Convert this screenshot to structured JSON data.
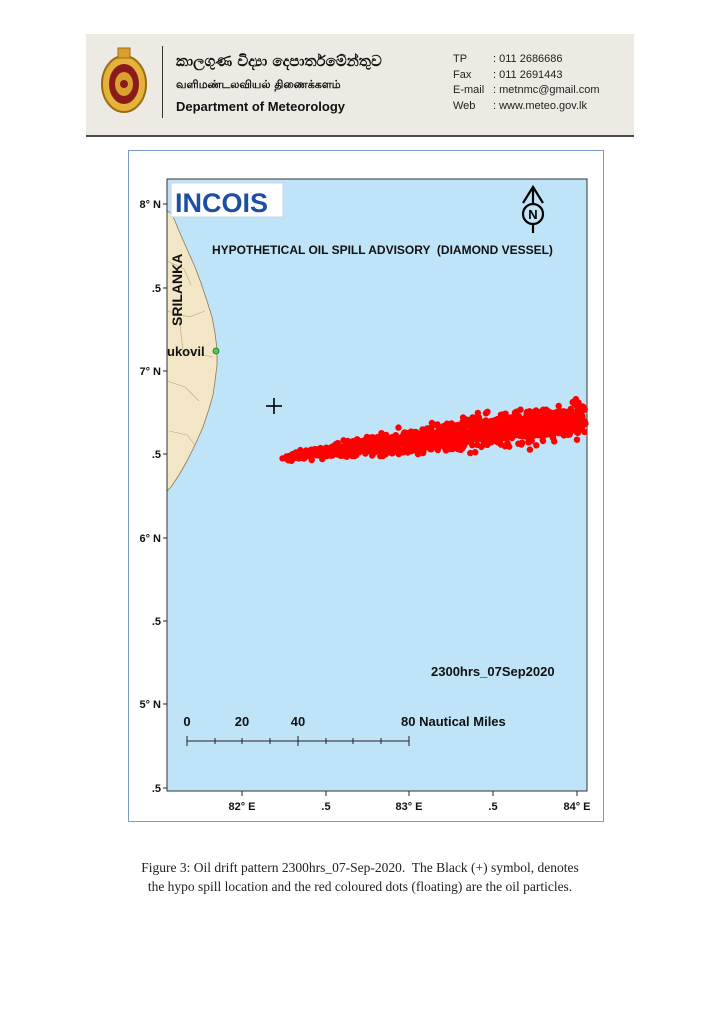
{
  "header": {
    "sinhala_name": "කාලගුණ විද්‍යා දෙපාර්තමේන්තුව",
    "tamil_name": "வளிமண்டலவியல் திணைக்களம்",
    "english_name": "Department of Meteorology",
    "contacts": [
      {
        "label": "TP",
        "value": ": 011 2686686"
      },
      {
        "label": "Fax",
        "value": ": 011 2691443"
      },
      {
        "label": "E-mail",
        "value": ": metnmc@gmail.com"
      },
      {
        "label": "Web",
        "value": ": www.meteo.gov.lk"
      }
    ]
  },
  "map": {
    "logo_text": "INCOIS",
    "title": "HYPOTHETICAL OIL SPILL ADVISORY  (DIAMOND VESSEL)",
    "north_label": "N",
    "country_label": "SRILANKA",
    "place_label": "ukovil",
    "timestamp": "2300hrs_07Sep2020",
    "scale_labels": [
      "0",
      "20",
      "40",
      "80 Nautical Miles"
    ],
    "lat_ticks": [
      "8° N",
      ".5",
      "7° N",
      ".5",
      "6° N",
      ".5",
      "5° N",
      ".5"
    ],
    "lon_ticks": [
      "82° E",
      ".5",
      "83° E",
      ".5",
      "84° E"
    ],
    "lat_range": [
      4.5,
      8.2
    ],
    "lon_range": [
      81.55,
      84.05
    ],
    "spill_location": {
      "lon": 81.95,
      "lat": 6.8
    },
    "colors": {
      "sea": "#bfe3f7",
      "land": "#f3e6c6",
      "oil": "#ff0000",
      "marker": "#000000"
    }
  },
  "caption": {
    "line1": "Figure 3: Oil drift pattern 2300hrs_07-Sep-2020.  The Black (+) symbol, denotes",
    "line2": "the hypo spill location and the red coloured dots (floating) are the oil particles."
  }
}
